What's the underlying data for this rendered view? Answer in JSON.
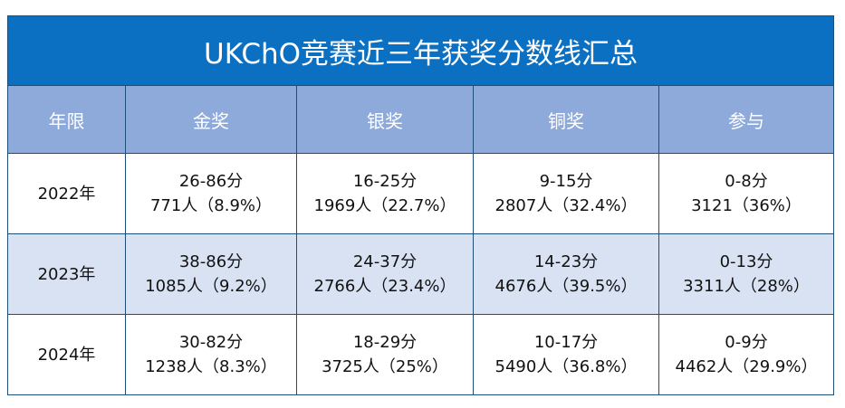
{
  "title": "UKChO竞赛近三年获奖分数线汇总",
  "headers": [
    "年限",
    "金奖",
    "银奖",
    "铜奖",
    "参与"
  ],
  "rows": [
    {
      "year": "2022年",
      "cells": [
        {
          "range": "26-86分",
          "count": "771人（8.9%）"
        },
        {
          "range": "16-25分",
          "count": "1969人（22.7%）"
        },
        {
          "range": "9-15分",
          "count": "2807人（32.4%）"
        },
        {
          "range": "0-8分",
          "count": "3121（36%）"
        }
      ]
    },
    {
      "year": "2023年",
      "cells": [
        {
          "range": "38-86分",
          "count": "1085人（9.2%）"
        },
        {
          "range": "24-37分",
          "count": "2766人（23.4%）"
        },
        {
          "range": "14-23分",
          "count": "4676人（39.5%）"
        },
        {
          "range": "0-13分",
          "count": "3311人（28%）"
        }
      ]
    },
    {
      "year": "2024年",
      "cells": [
        {
          "range": "30-82分",
          "count": "1238人（8.3%）"
        },
        {
          "range": "18-29分",
          "count": "3725人（25%）"
        },
        {
          "range": "10-17分",
          "count": "5490人（36.8%）"
        },
        {
          "range": "0-9分",
          "count": "4462人（29.9%）"
        }
      ]
    }
  ]
}
